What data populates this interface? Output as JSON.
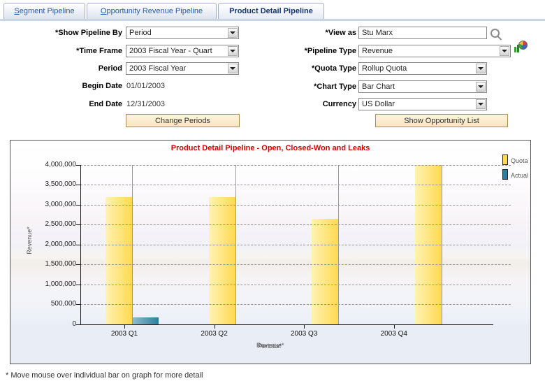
{
  "tabs": [
    {
      "label": "Segment Pipeline",
      "active": false
    },
    {
      "label": "Opportunity Revenue Pipeline",
      "active": false
    },
    {
      "label": "Product Detail Pipeline",
      "active": true
    }
  ],
  "form": {
    "show_pipeline_by": {
      "label": "*Show Pipeline By",
      "value": "Period"
    },
    "time_frame": {
      "label": "*Time Frame",
      "value": "2003 Fiscal Year - Quart"
    },
    "period": {
      "label": "Period",
      "value": "2003 Fiscal Year"
    },
    "begin_date": {
      "label": "Begin Date",
      "value": "01/01/2003"
    },
    "end_date": {
      "label": "End Date",
      "value": "12/31/2003"
    },
    "change_periods_button": "Change Periods",
    "view_as": {
      "label": "*View as",
      "value": "Stu Marx"
    },
    "pipeline_type": {
      "label": "*Pipeline Type",
      "value": "Revenue"
    },
    "quota_type": {
      "label": "*Quota Type",
      "value": "Rollup Quota"
    },
    "chart_type": {
      "label": "*Chart Type",
      "value": "Bar Chart"
    },
    "currency": {
      "label": "Currency",
      "value": "US Dollar"
    },
    "show_opportunity_list_button": "Show Opportunity List"
  },
  "chart_data": {
    "type": "bar",
    "title": "Product Detail Pipeline - Open, Closed-Won and Leaks",
    "title_color": "#d40000",
    "categories": [
      "2003 Q1",
      "2003 Q2",
      "2003 Q3",
      "2003 Q4"
    ],
    "series": [
      {
        "name": "Quota",
        "color_left": "#fff3b4",
        "color_right": "#ffd94f",
        "values": [
          3200000,
          3200000,
          2650000,
          4000000
        ]
      },
      {
        "name": "Actual",
        "color_left": "#8fbccc",
        "color_right": "#2e7f9b",
        "values": [
          175000,
          0,
          0,
          0
        ]
      }
    ],
    "ylabel": "Revenue*",
    "xlabel": "Periods*",
    "xlabel_overlapped_with": "Revenue*",
    "ylim": [
      0,
      4000000
    ],
    "ytick_step": 500000,
    "grid": "dash-dot horizontal",
    "legend_position": "right"
  },
  "footnote": "* Move mouse over individual bar on graph for more detail"
}
